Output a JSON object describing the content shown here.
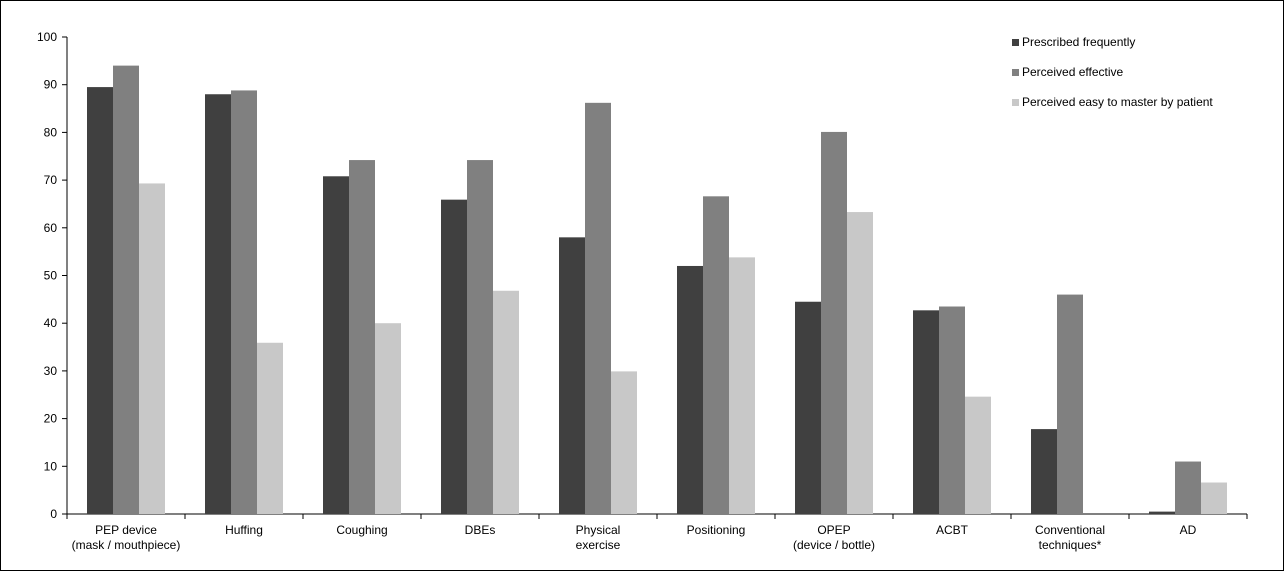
{
  "chart_data": {
    "type": "bar",
    "categories": [
      [
        "PEP device",
        "(mask / mouthpiece)"
      ],
      [
        "Huffing"
      ],
      [
        "Coughing"
      ],
      [
        "DBEs"
      ],
      [
        "Physical",
        "exercise"
      ],
      [
        "Positioning"
      ],
      [
        "OPEP",
        "(device / bottle)"
      ],
      [
        "ACBT"
      ],
      [
        "Conventional",
        "techniques*"
      ],
      [
        "AD"
      ]
    ],
    "series": [
      {
        "name": "Prescribed frequently",
        "color": "#404040",
        "values": [
          89.5,
          88.0,
          70.8,
          65.9,
          58.0,
          52.0,
          44.5,
          42.7,
          17.8,
          0.5
        ]
      },
      {
        "name": "Perceived effective",
        "color": "#808080",
        "values": [
          94.0,
          88.8,
          74.2,
          74.2,
          86.2,
          66.6,
          80.1,
          43.5,
          46.0,
          11.0
        ]
      },
      {
        "name": "Perceived easy to master by patient",
        "color": "#c8c8c8",
        "values": [
          69.3,
          35.9,
          40.0,
          46.8,
          29.9,
          53.8,
          63.3,
          24.6,
          0,
          6.6
        ]
      }
    ],
    "ylim": [
      0,
      100
    ],
    "yticks": [
      "0",
      "10",
      "20",
      "30",
      "40",
      "50",
      "60",
      "70",
      "80",
      "90",
      "100"
    ],
    "title": "",
    "xlabel": "",
    "ylabel": "",
    "grid": false,
    "legend_position": "top-right"
  }
}
